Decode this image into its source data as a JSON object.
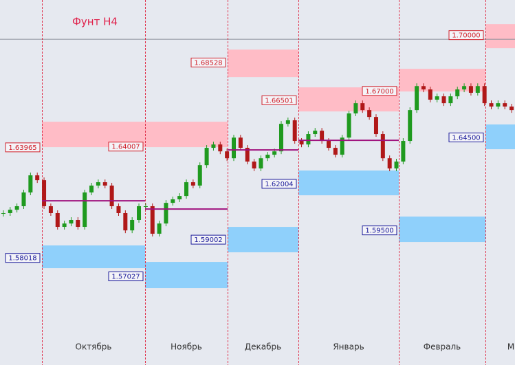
{
  "chart_data": {
    "type": "candlestick",
    "title": "Фунт H4",
    "ylim": [
      1.5226,
      1.7189
    ],
    "level": 1.69778,
    "colors": {
      "up": "#1f9a1f",
      "down": "#b01818",
      "resistance": "#ffbcc6",
      "support": "#8fd0fb",
      "pivot": "#a0127e",
      "separator": "#e0304a",
      "title": "#e0204a"
    },
    "closes": [
      1.6043,
      1.6061,
      1.608,
      1.6154,
      1.6246,
      1.622,
      1.608,
      1.6043,
      1.5969,
      1.5987,
      1.6006,
      1.5969,
      1.6154,
      1.6191,
      1.6209,
      1.6191,
      1.608,
      1.6043,
      1.595,
      1.6006,
      1.608,
      1.608,
      1.5932,
      1.5987,
      1.6098,
      1.6117,
      1.6135,
      1.6209,
      1.6191,
      1.6301,
      1.6394,
      1.6412,
      1.6375,
      1.6338,
      1.6449,
      1.6394,
      1.632,
      1.6283,
      1.6338,
      1.6357,
      1.6375,
      1.6523,
      1.6542,
      1.6431,
      1.6412,
      1.6468,
      1.6486,
      1.6431,
      1.6394,
      1.6357,
      1.6449,
      1.6579,
      1.6634,
      1.6597,
      1.656,
      1.6468,
      1.6338,
      1.6283,
      1.632,
      1.6431,
      1.6597,
      1.6726,
      1.6708,
      1.6653,
      1.6671,
      1.6634,
      1.6671,
      1.6708,
      1.6726,
      1.669,
      1.6726,
      1.6634,
      1.6616,
      1.6634,
      1.6616,
      1.6597
    ],
    "periods": [
      {
        "month": "Октябрь",
        "resistance": {
          "label": {
            "value": 1.63965,
            "label": "1.63965"
          },
          "top": 1.65343,
          "bottom": 1.63976
        },
        "support": {
          "label": {
            "value": 1.58018,
            "label": "1.58018"
          },
          "top": 1.5869,
          "bottom": 1.5747
        },
        "pivot": 1.61093
      },
      {
        "month": "Ноябрь",
        "resistance": {
          "label": {
            "value": 1.64007,
            "label": "1.64007"
          },
          "top": 1.65343,
          "bottom": 1.63976
        },
        "support": {
          "label": {
            "value": 1.57027,
            "label": "1.57027"
          },
          "top": 1.57803,
          "bottom": 1.56399
        },
        "pivot": 1.60649
      },
      {
        "month": "Декабрь",
        "resistance": {
          "label": {
            "value": 1.68528,
            "label": "1.68528"
          },
          "top": 1.69224,
          "bottom": 1.67745
        },
        "support": {
          "label": {
            "value": 1.59002,
            "label": "1.59002"
          },
          "top": 1.59688,
          "bottom": 1.58321
        },
        "pivot": 1.63828
      },
      {
        "month": "Январь",
        "resistance": {
          "label": {
            "value": 1.66501,
            "label": "1.66501"
          },
          "top": 1.67191,
          "bottom": 1.65897
        },
        "support": {
          "label": {
            "value": 1.62004,
            "label": "1.62004"
          },
          "top": 1.62719,
          "bottom": 1.61388
        },
        "pivot": 1.64345
      },
      {
        "month": "Февраль",
        "resistance": {
          "label": {
            "value": 1.67,
            "label": "1.67000"
          },
          "top": 1.68189,
          "bottom": 1.66969
        },
        "support": {
          "label": {
            "value": 1.595,
            "label": "1.59500"
          },
          "top": 1.60242,
          "bottom": 1.58875
        }
      },
      {
        "month": "М",
        "resistance": {
          "label": {
            "value": 1.7,
            "label": "1.70000"
          },
          "top": 1.70591,
          "bottom": 1.69298
        },
        "support": {
          "label": {
            "value": 1.645,
            "label": "1.64500"
          },
          "top": 1.65195,
          "bottom": 1.63865
        }
      }
    ]
  }
}
